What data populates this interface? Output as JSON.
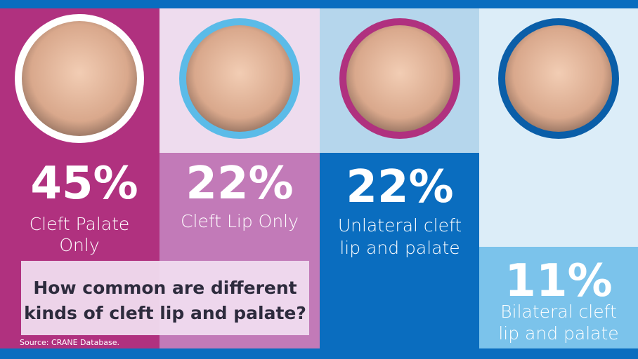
{
  "panels": [
    {
      "percent": "45%",
      "label_lines": [
        "Cleft Palate",
        "Only"
      ]
    },
    {
      "percent": "22%",
      "label_lines": [
        "Cleft Lip Only"
      ]
    },
    {
      "percent": "22%",
      "label_lines": [
        "Unlateral cleft",
        "lip and palate"
      ]
    },
    {
      "percent": "11%",
      "label_lines": [
        "Bilateral cleft",
        "lip and palate"
      ]
    }
  ],
  "title_lines": [
    "How common are different",
    "kinds of cleft lip and palate?"
  ],
  "source": "Source: CRANE Database."
}
